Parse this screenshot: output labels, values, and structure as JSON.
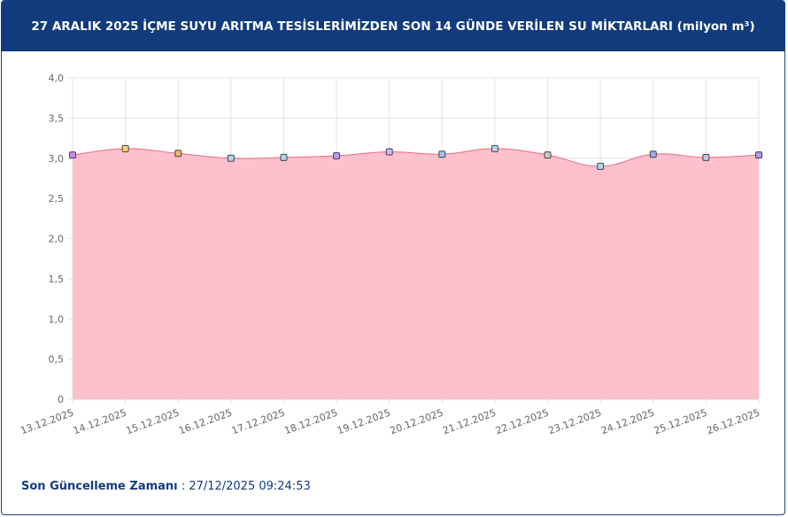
{
  "chart_data": {
    "type": "area",
    "title": "27 ARALIK 2025 İÇME SUYU ARITMA TESİSLERİMİZDEN SON 14 GÜNDE VERİLEN SU MİKTARLARI (milyon m³)",
    "categories": [
      "13.12.2025",
      "14.12.2025",
      "15.12.2025",
      "16.12.2025",
      "17.12.2025",
      "18.12.2025",
      "19.12.2025",
      "20.12.2025",
      "21.12.2025",
      "22.12.2025",
      "23.12.2025",
      "24.12.2025",
      "25.12.2025",
      "26.12.2025"
    ],
    "values": [
      3.04,
      3.12,
      3.06,
      3.0,
      3.01,
      3.03,
      3.08,
      3.05,
      3.12,
      3.04,
      2.9,
      3.05,
      3.01,
      3.04
    ],
    "color": "#e8697f",
    "fill": "#ffc0cd",
    "marker_colors": [
      "#c58af9",
      "#f5d76e",
      "#f7b26a",
      "#a9d6f2",
      "#a9d6f2",
      "#b39cf5",
      "#c9b8f7",
      "#9cc4f2",
      "#a9d6f2",
      "#c8c8cc",
      "#a9d6f2",
      "#9fa8f2",
      "#b8c6e6",
      "#b39cf5"
    ],
    "ylim": [
      0,
      4
    ],
    "yticks": [
      0,
      {
        "value": 0.5,
        "label": "0,5"
      },
      {
        "value": 1,
        "label": "1,0"
      },
      {
        "value": 1.5,
        "label": "1,5"
      },
      {
        "value": 2,
        "label": "2,0"
      },
      {
        "value": 2.5,
        "label": "2,5"
      },
      {
        "value": 3,
        "label": "3,0"
      },
      {
        "value": 3.5,
        "label": "3,5"
      },
      {
        "value": 4,
        "label": "4,0"
      }
    ],
    "grid": true
  },
  "footer": {
    "label": "Son Güncelleme Zamanı",
    "separator": ":",
    "value": "27/12/2025 09:24:53"
  }
}
